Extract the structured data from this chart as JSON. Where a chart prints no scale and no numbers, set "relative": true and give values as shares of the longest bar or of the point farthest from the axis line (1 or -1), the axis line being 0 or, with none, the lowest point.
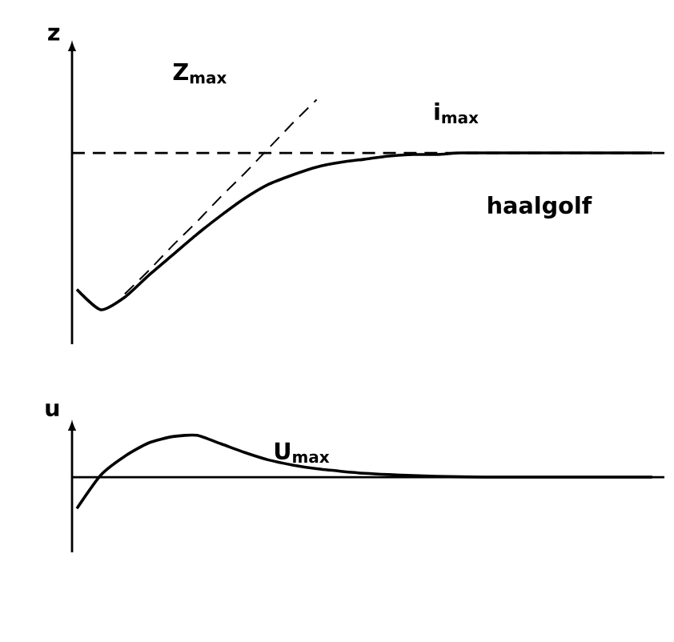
{
  "chart_data": [
    {
      "type": "line",
      "relative": true,
      "ylabel": "z",
      "categories": [
        null,
        null,
        null,
        null,
        null,
        null,
        null,
        null,
        null,
        null,
        null,
        null,
        null,
        null,
        null,
        null,
        null,
        null,
        null,
        null,
        null,
        null,
        null,
        null,
        null
      ],
      "series": [
        {
          "color": "#000000",
          "values": [
            -0.87,
            -1,
            -0.92,
            -0.78,
            -0.65,
            -0.52,
            -0.4,
            -0.29,
            -0.2,
            -0.14,
            -0.09,
            -0.06,
            -0.04,
            -0.02,
            -0.01,
            -0.01,
            0,
            0,
            0,
            0,
            0,
            0,
            0,
            0,
            0
          ]
        },
        {
          "type": "line",
          "line_style": "dashed",
          "color": "#000000",
          "values": [
            null,
            null,
            -0.9,
            -0.75,
            -0.59,
            -0.44,
            -0.28,
            -0.13,
            0.03,
            0.19,
            0.34,
            null,
            null,
            null,
            null,
            null,
            null,
            null,
            null,
            null,
            null,
            null,
            null,
            null,
            null
          ]
        }
      ],
      "ref_lines": [
        {
          "axis": "y",
          "value": 0,
          "line_style": "dashed",
          "color": "#000000"
        }
      ],
      "annotations": [
        "Z$_{max}$",
        "i$_{max}$",
        "haalgolf"
      ]
    },
    {
      "type": "line",
      "relative": true,
      "ylabel": "u",
      "categories": [
        null,
        null,
        null,
        null,
        null,
        null,
        null,
        null,
        null,
        null,
        null,
        null,
        null,
        null,
        null,
        null,
        null,
        null,
        null,
        null,
        null,
        null,
        null,
        null,
        null
      ],
      "series": [
        {
          "color": "#000000",
          "values": [
            -0.75,
            0.05,
            0.5,
            0.82,
            0.97,
            1.0,
            0.8,
            0.59,
            0.41,
            0.29,
            0.2,
            0.14,
            0.09,
            0.06,
            0.04,
            0.02,
            0.01,
            0,
            0,
            0,
            0,
            0,
            0,
            0,
            0
          ]
        }
      ],
      "annotations": [
        "U$_{max}$"
      ]
    }
  ]
}
